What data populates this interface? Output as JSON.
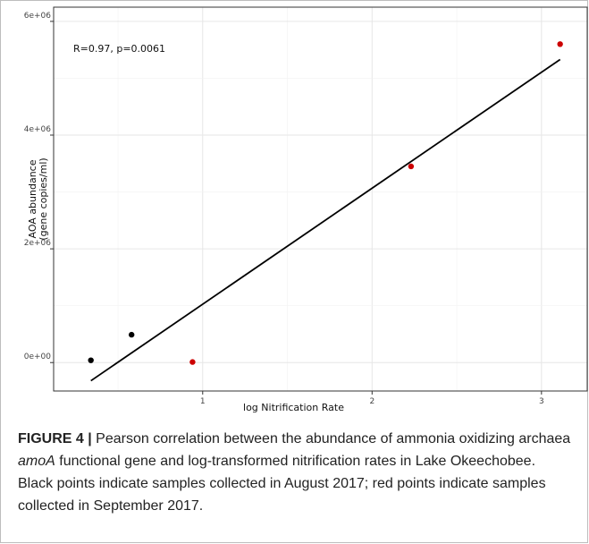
{
  "chart_data": {
    "type": "scatter",
    "xlabel": "log Nitrification Rate",
    "ylabel_lines": [
      "AOA abundance",
      "(gene copies/ml)"
    ],
    "x_ticks": [
      1,
      2,
      3
    ],
    "x_tick_labels": [
      "1",
      "2",
      "3"
    ],
    "y_ticks": [
      0,
      2000000,
      4000000,
      6000000
    ],
    "y_tick_labels": [
      "0e+00",
      "2e+06",
      "4e+06",
      "6e+06"
    ],
    "xlim": [
      0.12,
      3.27
    ],
    "ylim": [
      -500000,
      6250000
    ],
    "grid": true,
    "annotation": "R=0.97, p=0.0061",
    "series": [
      {
        "color": "#000000",
        "x": [
          0.34,
          0.58
        ],
        "y": [
          40000,
          490000
        ]
      },
      {
        "color": "#cc0000",
        "x": [
          0.94,
          2.23,
          3.11
        ],
        "y": [
          10000,
          3450000,
          5600000
        ]
      }
    ],
    "fit_line": {
      "x": [
        0.34,
        3.11
      ],
      "y": [
        -320000,
        5330000
      ]
    }
  },
  "caption": {
    "label": "FIGURE 4 |",
    "text_before_italic": " Pearson correlation between the abundance of ammonia oxidizing archaea ",
    "italic": "amoA",
    "text_after_italic": " functional gene and log-transformed nitrification rates in Lake Okeechobee. Black points indicate samples collected in August 2017; red points indicate samples collected in September 2017."
  }
}
